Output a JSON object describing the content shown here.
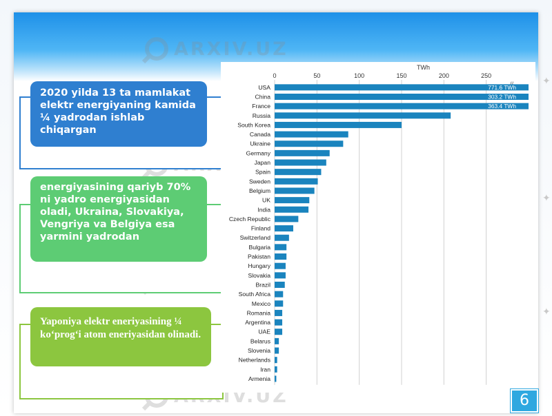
{
  "slide": {
    "box1_text": "2020 yilda 13 ta mamlakat elektr energiyaning kamida ¼ yadrodan ishlab chiqargan",
    "box2_text": "energiyasining qariyb 70% ni yadro energiyasidan oladi, Ukraina, Slovakiya, Vengriya va Belgiya esa yarmini yadrodan",
    "box3_text": "Yaponiya elektr eneriyasining ¼ koʻprogʻi atom eneriyasidan olinadi.",
    "page_number": "6",
    "watermark": "ARXIV.UZ",
    "colors": {
      "header": "#1e90e8",
      "box1": "#2f7fd0",
      "box2": "#5dcc74",
      "box3": "#8cc63f",
      "bar": "#1a84be"
    }
  },
  "chart_data": {
    "type": "bar",
    "orientation": "horizontal",
    "xlabel": "TWh",
    "xlim": [
      0,
      300
    ],
    "xticks": [
      "0",
      "50",
      "100",
      "150",
      "200",
      "250"
    ],
    "grid": true,
    "axis_break": "//",
    "categories": [
      "USA",
      "China",
      "France",
      "Russia",
      "South Korea",
      "Canada",
      "Ukraine",
      "Germany",
      "Japan",
      "Spain",
      "Sweden",
      "Belgium",
      "UK",
      "India",
      "Czech Republic",
      "Finland",
      "Switzerland",
      "Bulgaria",
      "Pakistan",
      "Hungary",
      "Slovakia",
      "Brazil",
      "South Africa",
      "Mexico",
      "Romania",
      "Argentina",
      "UAE",
      "Belarus",
      "Slovenia",
      "Netherlands",
      "Iran",
      "Armenia"
    ],
    "values": [
      771.6,
      303.2,
      363.4,
      208,
      150,
      87,
      81,
      65,
      61,
      55,
      51,
      47,
      41,
      40,
      28,
      22,
      17,
      14,
      14,
      13,
      13,
      12,
      10,
      10,
      9,
      9,
      9,
      5,
      5,
      3,
      3,
      2
    ],
    "value_labels": [
      "771.6 TWh",
      "303.2 TWh",
      "363.4 TWh",
      "",
      "",
      "",
      "",
      "",
      "",
      "",
      "",
      "",
      "",
      "",
      "",
      "",
      "",
      "",
      "",
      "",
      "",
      "",
      "",
      "",
      "",
      "",
      "",
      "",
      "",
      "",
      "",
      ""
    ]
  }
}
